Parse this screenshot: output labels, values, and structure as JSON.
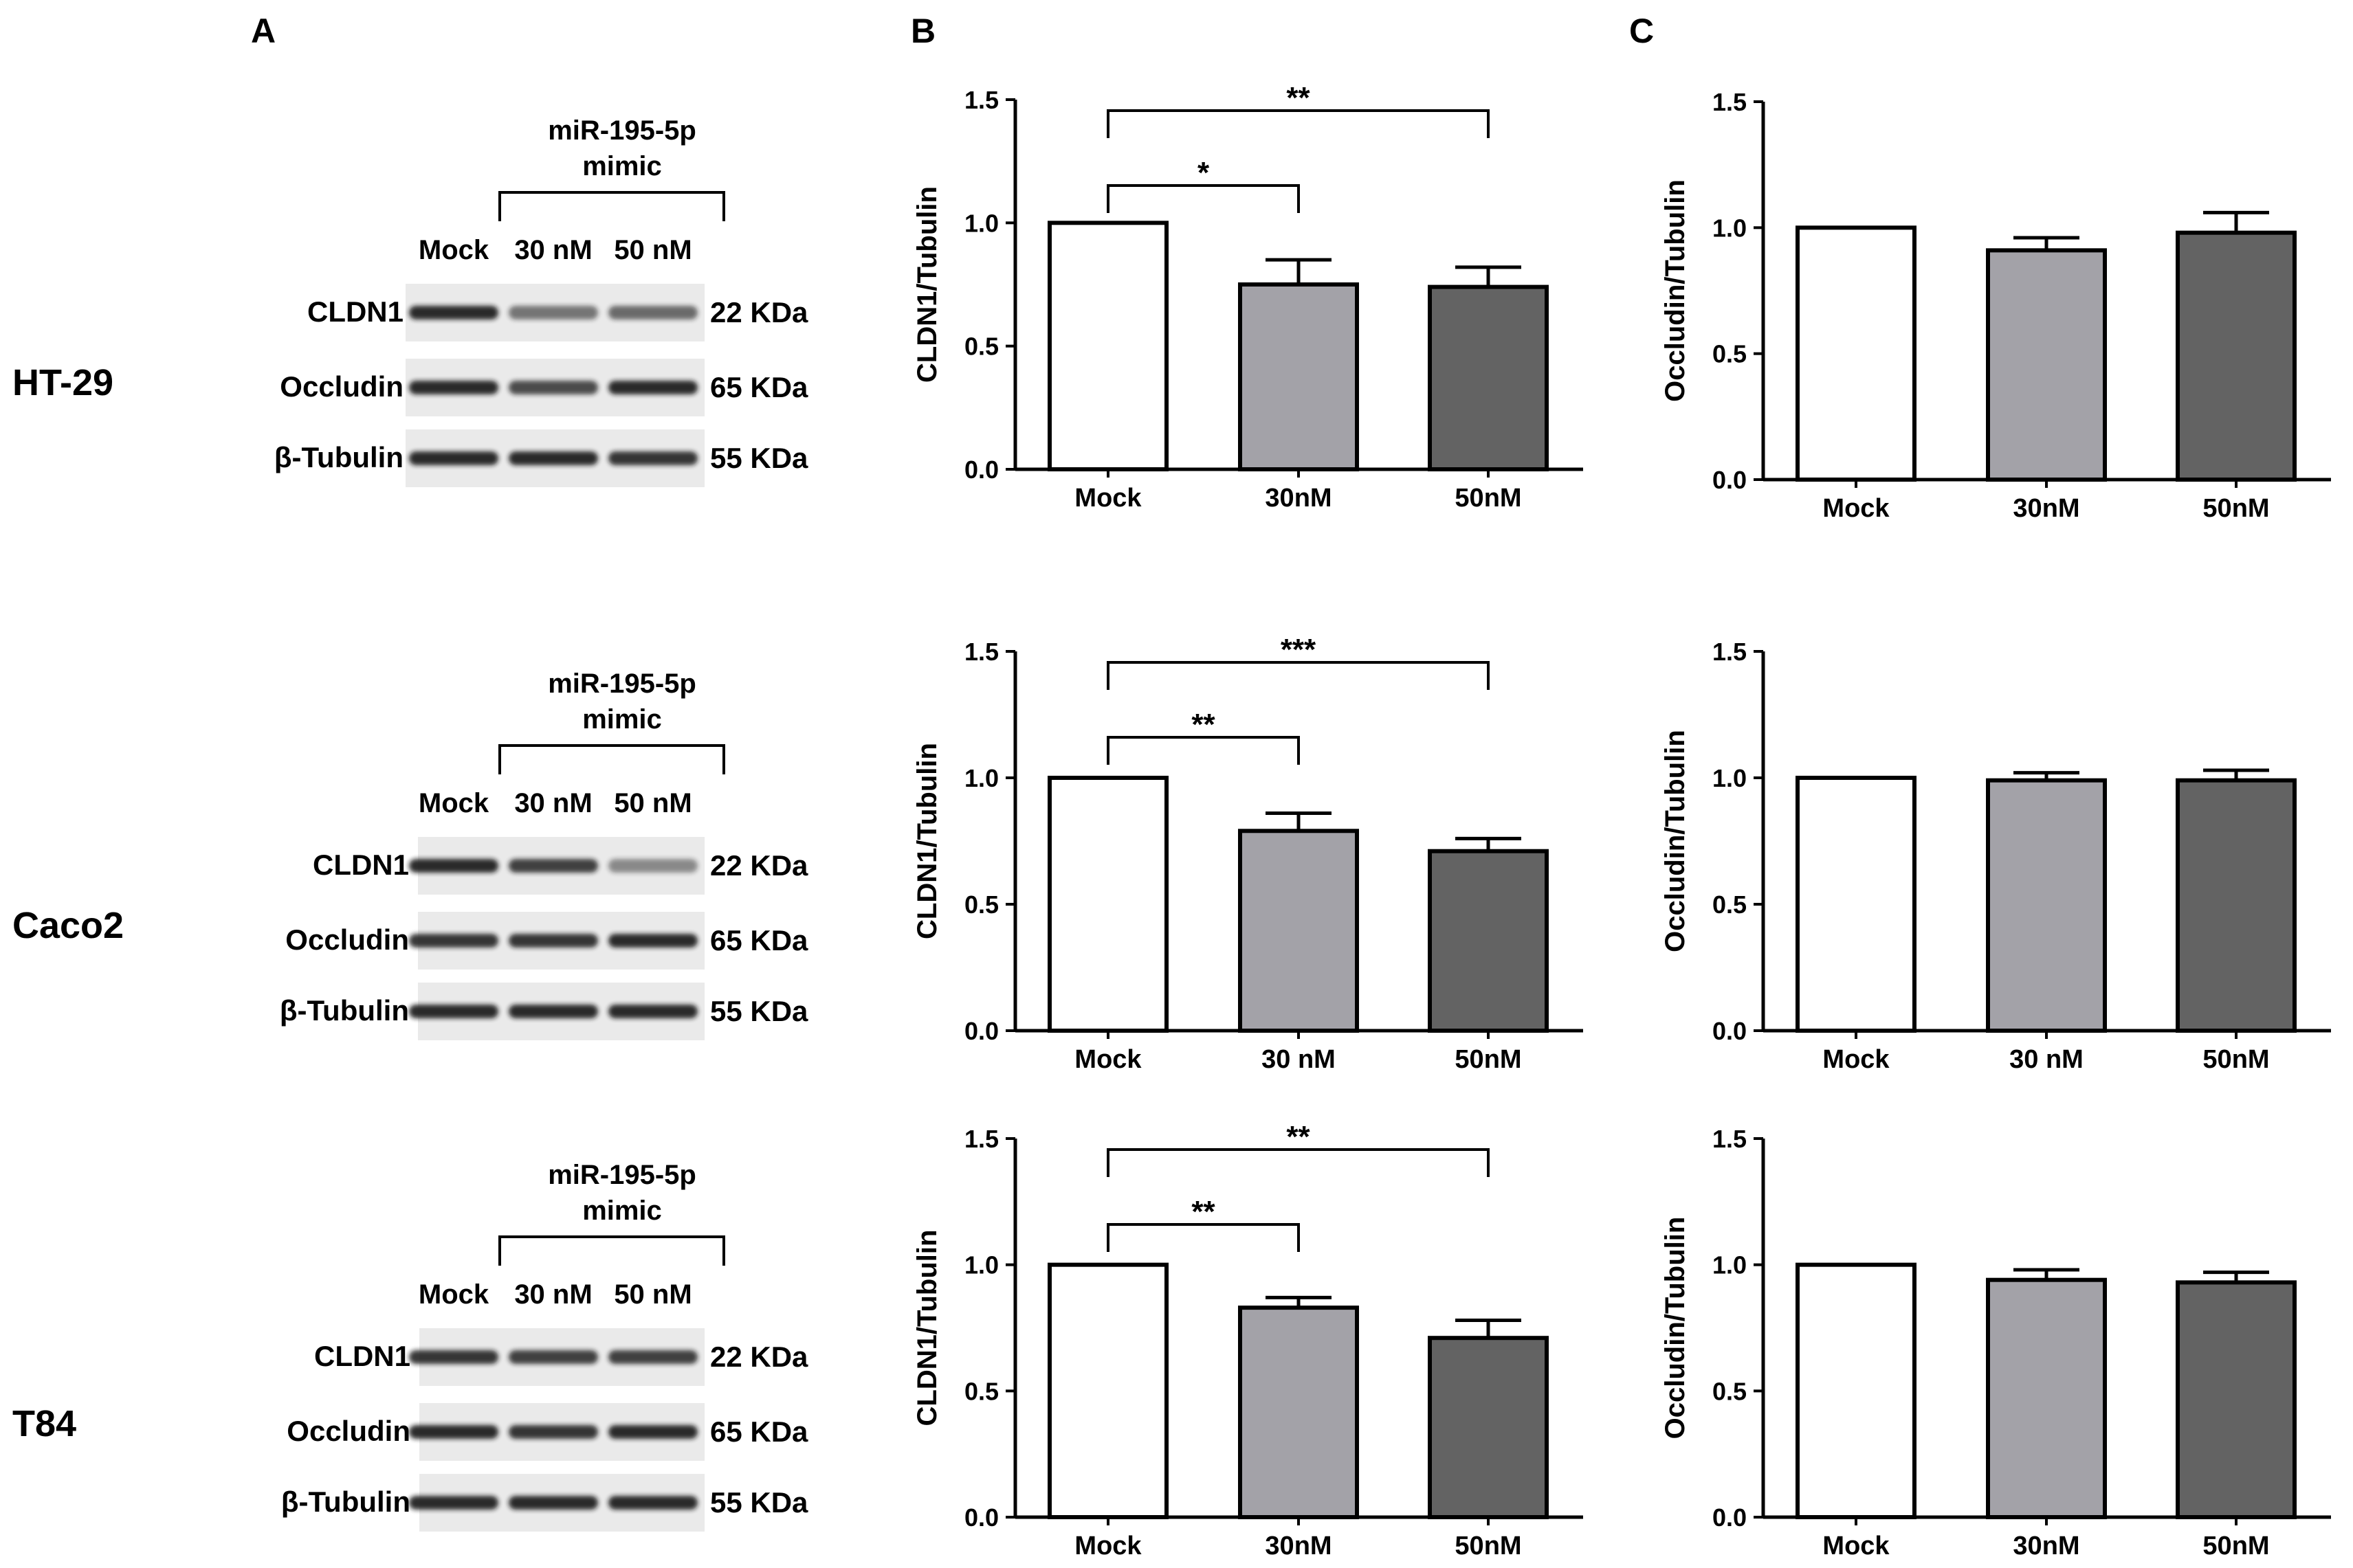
{
  "panels": {
    "a": "A",
    "b": "B",
    "c": "C"
  },
  "colors": {
    "mock": "#ffffff",
    "c30": "#a3a2a8",
    "c50": "#636363",
    "band": "#161616"
  },
  "blot": {
    "rows": [
      {
        "cell_line": "HT-29",
        "treatment": {
          "line1": "miR-195-5p",
          "line2": "mimic"
        },
        "lanes": [
          "Mock",
          "30 nM",
          "50 nM"
        ],
        "bands": [
          {
            "protein": "CLDN1",
            "size": "22 KDa",
            "intensity": [
              0.9,
              0.55,
              0.6
            ]
          },
          {
            "protein": "Occludin",
            "size": "65 KDa",
            "intensity": [
              0.9,
              0.75,
              0.9
            ]
          },
          {
            "protein": "β-Tubulin",
            "size": "55 KDa",
            "intensity": [
              0.9,
              0.9,
              0.85
            ]
          }
        ]
      },
      {
        "cell_line": "Caco2",
        "treatment": {
          "line1": "miR-195-5p",
          "line2": "mimic"
        },
        "lanes": [
          "Mock",
          "30 nM",
          "50 nM"
        ],
        "bands": [
          {
            "protein": "CLDN1",
            "size": "22 KDa",
            "intensity": [
              0.9,
              0.8,
              0.45
            ]
          },
          {
            "protein": "Occludin",
            "size": "65 KDa",
            "intensity": [
              0.85,
              0.85,
              0.9
            ]
          },
          {
            "protein": "β-Tubulin",
            "size": "55 KDa",
            "intensity": [
              0.9,
              0.9,
              0.9
            ]
          }
        ]
      },
      {
        "cell_line": "T84",
        "treatment": {
          "line1": "miR-195-5p",
          "line2": "mimic"
        },
        "lanes": [
          "Mock",
          "30 nM",
          "50 nM"
        ],
        "bands": [
          {
            "protein": "CLDN1",
            "size": "22 KDa",
            "intensity": [
              0.85,
              0.8,
              0.8
            ]
          },
          {
            "protein": "Occludin",
            "size": "65 KDa",
            "intensity": [
              0.9,
              0.85,
              0.9
            ]
          },
          {
            "protein": "β-Tubulin",
            "size": "55 KDa",
            "intensity": [
              0.9,
              0.9,
              0.9
            ]
          }
        ]
      }
    ]
  },
  "chart_data": [
    {
      "type": "bar",
      "panel": "B",
      "cell_line": "HT-29",
      "ylabel": "CLDN1/Tubulin",
      "ylim": [
        0,
        1.5
      ],
      "yticks": [
        "0.0",
        "0.5",
        "1.0",
        "1.5"
      ],
      "categories": [
        "Mock",
        "30nM",
        "50nM"
      ],
      "values": [
        1.0,
        0.75,
        0.74
      ],
      "errors": [
        0.0,
        0.1,
        0.08
      ],
      "significance": [
        {
          "from": 0,
          "to": 1,
          "label": "*"
        },
        {
          "from": 0,
          "to": 2,
          "label": "**"
        }
      ]
    },
    {
      "type": "bar",
      "panel": "C",
      "cell_line": "HT-29",
      "ylabel": "Occludin/Tubulin",
      "ylim": [
        0,
        1.5
      ],
      "yticks": [
        "0.0",
        "0.5",
        "1.0",
        "1.5"
      ],
      "categories": [
        "Mock",
        "30nM",
        "50nM"
      ],
      "values": [
        1.0,
        0.91,
        0.98
      ],
      "errors": [
        0.0,
        0.05,
        0.08
      ],
      "significance": []
    },
    {
      "type": "bar",
      "panel": "B",
      "cell_line": "Caco2",
      "ylabel": "CLDN1/Tubulin",
      "ylim": [
        0,
        1.5
      ],
      "yticks": [
        "0.0",
        "0.5",
        "1.0",
        "1.5"
      ],
      "categories": [
        "Mock",
        "30 nM",
        "50nM"
      ],
      "values": [
        1.0,
        0.79,
        0.71
      ],
      "errors": [
        0.0,
        0.07,
        0.05
      ],
      "significance": [
        {
          "from": 0,
          "to": 1,
          "label": "**"
        },
        {
          "from": 0,
          "to": 2,
          "label": "***"
        }
      ]
    },
    {
      "type": "bar",
      "panel": "C",
      "cell_line": "Caco2",
      "ylabel": "Occludin/Tubulin",
      "ylim": [
        0,
        1.5
      ],
      "yticks": [
        "0.0",
        "0.5",
        "1.0",
        "1.5"
      ],
      "categories": [
        "Mock",
        "30 nM",
        "50nM"
      ],
      "values": [
        1.0,
        0.99,
        0.99
      ],
      "errors": [
        0.0,
        0.03,
        0.04
      ],
      "significance": []
    },
    {
      "type": "bar",
      "panel": "B",
      "cell_line": "T84",
      "ylabel": "CLDN1/Tubulin",
      "ylim": [
        0,
        1.5
      ],
      "yticks": [
        "0.0",
        "0.5",
        "1.0",
        "1.5"
      ],
      "categories": [
        "Mock",
        "30nM",
        "50nM"
      ],
      "values": [
        1.0,
        0.83,
        0.71
      ],
      "errors": [
        0.0,
        0.04,
        0.07
      ],
      "significance": [
        {
          "from": 0,
          "to": 1,
          "label": "**"
        },
        {
          "from": 0,
          "to": 2,
          "label": "**"
        }
      ]
    },
    {
      "type": "bar",
      "panel": "C",
      "cell_line": "T84",
      "ylabel": "Occludin/Tubulin",
      "ylim": [
        0,
        1.5
      ],
      "yticks": [
        "0.0",
        "0.5",
        "1.0",
        "1.5"
      ],
      "categories": [
        "Mock",
        "30nM",
        "50nM"
      ],
      "values": [
        1.0,
        0.94,
        0.93
      ],
      "errors": [
        0.0,
        0.04,
        0.04
      ],
      "significance": []
    }
  ]
}
